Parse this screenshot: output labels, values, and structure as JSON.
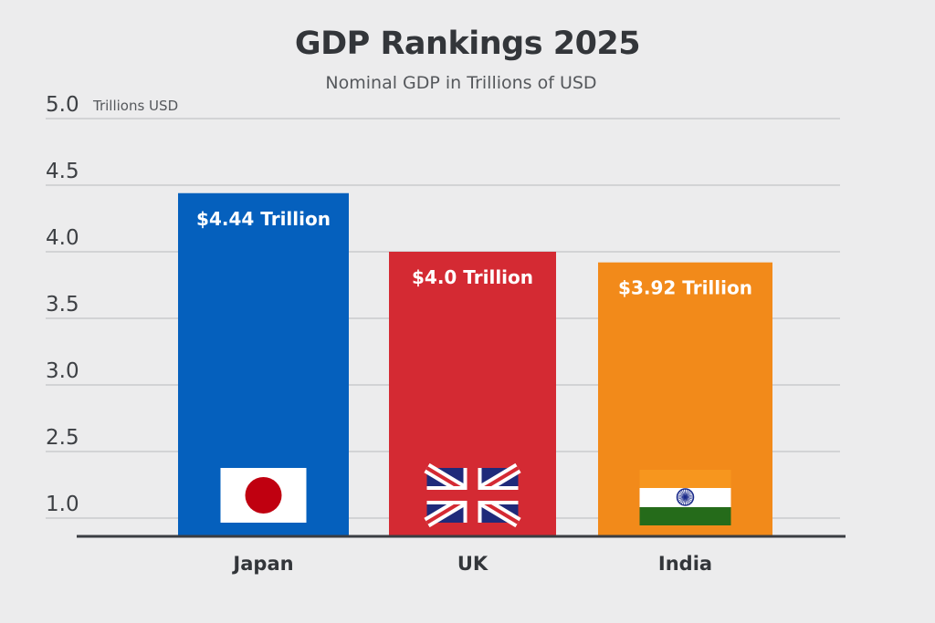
{
  "chart_data": {
    "type": "bar",
    "title": "GDP Rankings 2025",
    "subtitle": "Nominal GDP in Trillions of USD",
    "ylabel": "Trillions USD",
    "yticks": [
      "5.0",
      "4.5",
      "4.0",
      "3.5",
      "3.0",
      "2.5",
      "1.0"
    ],
    "categories": [
      "Japan",
      "UK",
      "India"
    ],
    "values": [
      4.44,
      4.0,
      3.92
    ],
    "data_labels": [
      "$4.44 Trillion",
      "$4.0 Trillion",
      "$3.92 Trillion"
    ],
    "colors": [
      "#0560bd",
      "#d42a33",
      "#f28a1a"
    ],
    "icons": [
      "japan-flag",
      "uk-flag",
      "india-flag"
    ],
    "grid": true,
    "legend": "none"
  }
}
